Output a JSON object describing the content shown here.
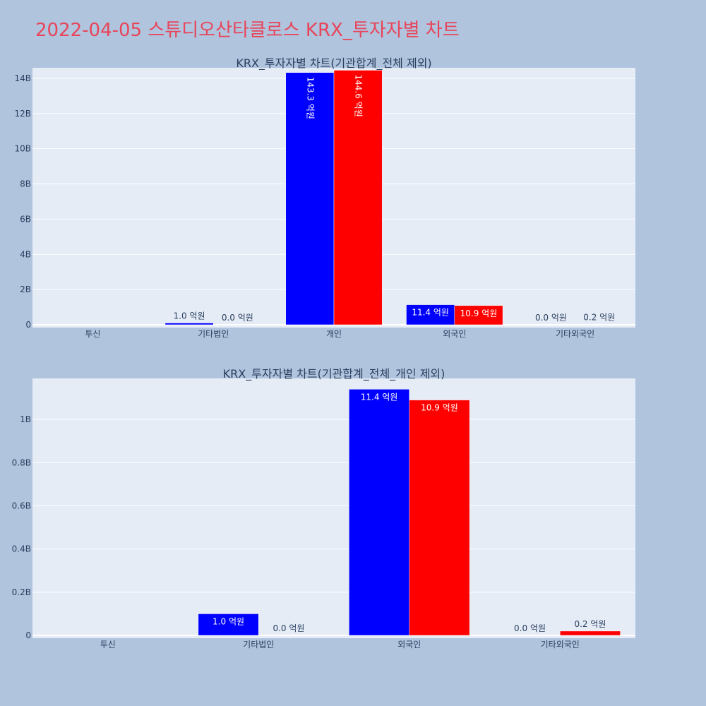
{
  "page": {
    "title": "2022-04-05 스튜디오산타클로스 KRX_투자자별 차트"
  },
  "colors": {
    "background": "#b0c4de",
    "plot_bg": "#e5ecf6",
    "buy": "#0000ff",
    "sell": "#ff0000",
    "title": "#e8455a"
  },
  "chart_data": [
    {
      "type": "bar",
      "title": "KRX_투자자별 차트(기관합계_전체 제외)",
      "categories": [
        "투신",
        "기타법인",
        "개인",
        "외국인",
        "기타외국인"
      ],
      "series": [
        {
          "values": [
            0,
            0.1,
            14.33,
            1.14,
            0.0
          ],
          "labels": [
            "",
            "1.0 억원",
            "143.3 억원",
            "11.4 억원",
            "0.0 억원"
          ],
          "color": "#0000ff"
        },
        {
          "values": [
            0,
            0.0,
            14.46,
            1.09,
            0.02
          ],
          "labels": [
            "",
            "0.0 억원",
            "144.6 억원",
            "10.9 억원",
            "0.2 억원"
          ],
          "color": "#ff0000"
        }
      ],
      "yticks": [
        "0",
        "2B",
        "4B",
        "6B",
        "8B",
        "10B",
        "12B",
        "14B"
      ],
      "ytick_values": [
        0,
        2,
        4,
        6,
        8,
        10,
        12,
        14
      ],
      "ylim": [
        0,
        14.6
      ],
      "grid": true
    },
    {
      "type": "bar",
      "title": "KRX_투자자별 차트(기관합계_전체_개인 제외)",
      "categories": [
        "투신",
        "기타법인",
        "외국인",
        "기타외국인"
      ],
      "series": [
        {
          "values": [
            0,
            0.1,
            1.14,
            0.0
          ],
          "labels": [
            "",
            "1.0 억원",
            "11.4 억원",
            "0.0 억원"
          ],
          "color": "#0000ff"
        },
        {
          "values": [
            0,
            0.0,
            1.09,
            0.02
          ],
          "labels": [
            "",
            "0.0 억원",
            "10.9 억원",
            "0.2 억원"
          ],
          "color": "#ff0000"
        }
      ],
      "yticks": [
        "0",
        "0.2B",
        "0.4B",
        "0.6B",
        "0.8B",
        "1B"
      ],
      "ytick_values": [
        0,
        0.2,
        0.4,
        0.6,
        0.8,
        1.0
      ],
      "ylim": [
        0,
        1.19
      ],
      "grid": true
    }
  ]
}
